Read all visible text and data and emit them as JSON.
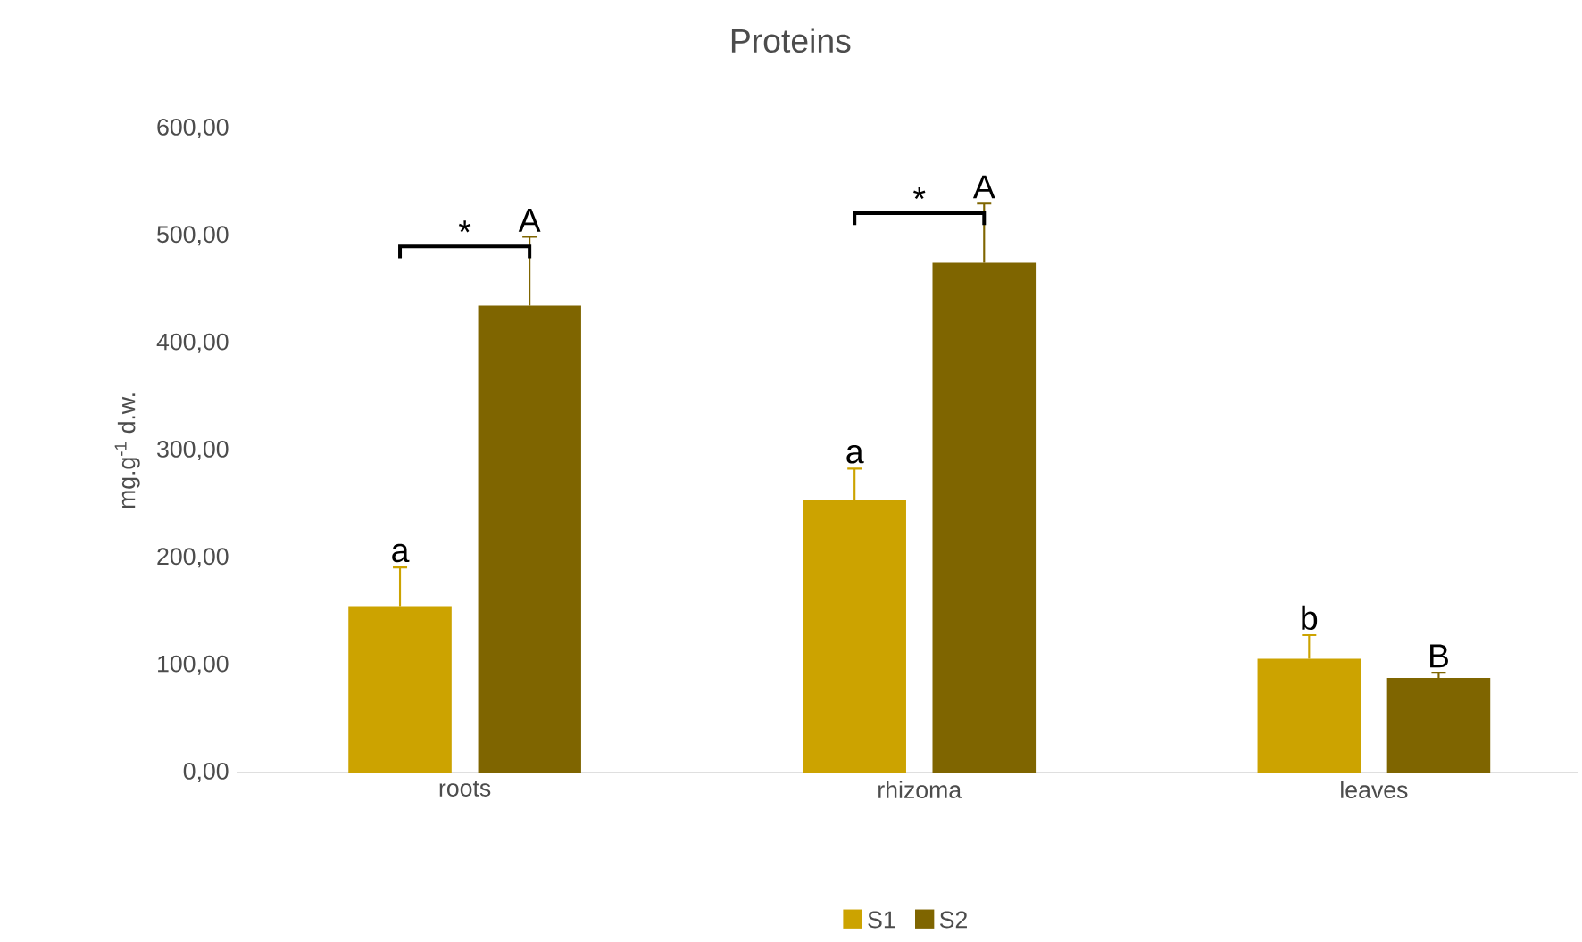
{
  "chart_data": {
    "type": "bar",
    "title": "Proteins",
    "ylabel": "mg.g$^{-1}$ d.w.",
    "categories": [
      "roots",
      "rhizoma",
      "leaves"
    ],
    "series": [
      {
        "name": "S1",
        "color": "#cca300",
        "values": [
          155,
          254,
          106
        ],
        "errors": [
          [
            155,
            191
          ],
          [
            254,
            283
          ],
          [
            106,
            128
          ]
        ]
      },
      {
        "name": "S2",
        "color": "#7f6500",
        "values": [
          435,
          475,
          88
        ],
        "errors": [
          [
            435,
            499
          ],
          [
            475,
            530
          ],
          [
            88,
            93
          ]
        ]
      }
    ],
    "ylim": [
      0,
      600
    ],
    "yticks": [
      {
        "value": 0,
        "label": "0,00"
      },
      {
        "value": 100,
        "label": "100,00"
      },
      {
        "value": 200,
        "label": "200,00"
      },
      {
        "value": 300,
        "label": "300,00"
      },
      {
        "value": 400,
        "label": "400,00"
      },
      {
        "value": 500,
        "label": "500,00"
      },
      {
        "value": 600,
        "label": "600,00"
      }
    ],
    "legend": "bottom",
    "grid": false,
    "annotations": [
      "a",
      "A",
      "*",
      "a",
      "A",
      "*",
      "b",
      "B"
    ]
  }
}
